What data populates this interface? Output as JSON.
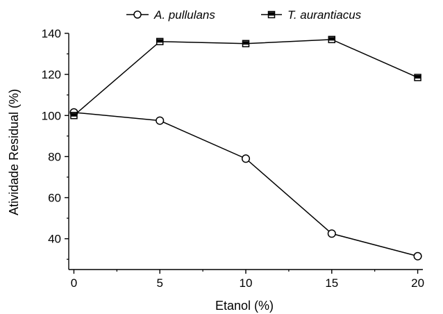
{
  "chart_data": {
    "type": "line",
    "xlabel": "Etanol (%)",
    "ylabel": "Atividade Residual (%)",
    "x": [
      0,
      5,
      10,
      15,
      20
    ],
    "xlim": [
      -0.3,
      20.3
    ],
    "ylim": [
      25,
      140
    ],
    "xticks": [
      0,
      5,
      10,
      15,
      20
    ],
    "yticks": [
      40,
      60,
      80,
      100,
      120,
      140
    ],
    "grid": false,
    "legend_position": "top",
    "series": [
      {
        "name": "A. pullulans",
        "marker": "open-circle",
        "color": "#000000",
        "values": [
          101.5,
          97.5,
          79,
          42.5,
          31.5
        ]
      },
      {
        "name": "T. aurantiacus",
        "marker": "half-filled-square",
        "color": "#000000",
        "values": [
          100,
          136,
          135,
          137,
          118.5
        ]
      }
    ]
  }
}
